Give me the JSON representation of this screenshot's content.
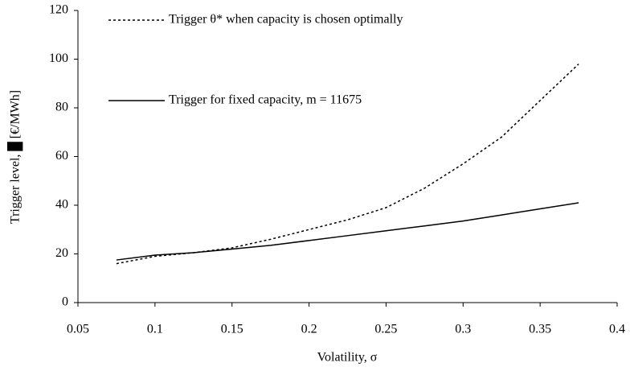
{
  "chart_data": {
    "type": "line",
    "x_label": "Volatility, σ",
    "y_label": "Trigger level, █ [€/MWh]",
    "x": [
      0.075,
      0.1,
      0.125,
      0.15,
      0.175,
      0.2,
      0.225,
      0.25,
      0.275,
      0.3,
      0.325,
      0.35,
      0.375
    ],
    "series": [
      {
        "name": "Trigger θ* when capacity is chosen optimally",
        "color": "#000000",
        "dash": "dotted",
        "values": [
          16,
          19,
          20.5,
          22.5,
          26,
          30,
          34,
          39,
          47,
          57,
          68,
          83,
          98
        ]
      },
      {
        "name": "Trigger for fixed capacity, m = 11675",
        "color": "#000000",
        "dash": "solid",
        "values": [
          17.5,
          19.5,
          20.5,
          22,
          23.5,
          25.5,
          27.5,
          29.5,
          31.5,
          33.5,
          36,
          38.5,
          41
        ]
      }
    ],
    "xlim": [
      0.05,
      0.4
    ],
    "xticks": [
      0.05,
      0.1,
      0.15,
      0.2,
      0.25,
      0.3,
      0.35,
      0.4
    ],
    "ylim": [
      0,
      120
    ],
    "yticks": [
      0,
      20,
      40,
      60,
      80,
      100,
      120
    ],
    "grid": false,
    "legend": "upper left"
  }
}
